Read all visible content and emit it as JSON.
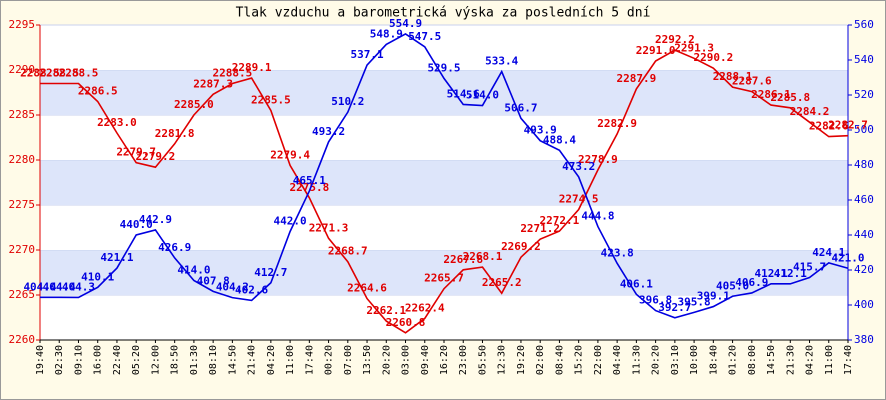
{
  "chart_data": {
    "type": "line",
    "title": "Tlak vzduchu a barometrická výska za posledních 5 dní",
    "categories": [
      "19:40",
      "02:30",
      "09:10",
      "16:00",
      "22:40",
      "05:20",
      "12:00",
      "18:50",
      "01:30",
      "08:10",
      "14:50",
      "21:40",
      "04:20",
      "11:00",
      "17:40",
      "00:20",
      "07:00",
      "13:50",
      "20:20",
      "03:00",
      "09:40",
      "16:20",
      "23:00",
      "05:50",
      "12:30",
      "19:20",
      "02:00",
      "08:40",
      "15:20",
      "22:00",
      "04:40",
      "11:30",
      "20:20",
      "03:10",
      "10:00",
      "18:40",
      "01:20",
      "08:00",
      "14:50",
      "21:30",
      "04:20",
      "11:00",
      "17:40"
    ],
    "series": [
      {
        "color": "#e00000",
        "axis": "y",
        "values": [
          2288.5,
          2288.5,
          2288.5,
          2286.5,
          2283.0,
          2279.7,
          2279.2,
          2281.8,
          2285.0,
          2287.3,
          2288.5,
          2289.1,
          2285.5,
          2279.4,
          2275.8,
          2271.3,
          2268.7,
          2264.6,
          2262.1,
          2260.8,
          2262.4,
          2265.7,
          2267.8,
          2268.1,
          2265.2,
          2269.2,
          2271.2,
          2272.1,
          2274.5,
          2278.9,
          2282.9,
          2287.9,
          2291.0,
          2292.2,
          2291.3,
          2290.2,
          2288.1,
          2287.6,
          2286.1,
          2285.8,
          2284.2,
          2282.6,
          2282.7
        ],
        "value_labels": [
          "2288.5",
          "2288.5",
          "2288.5",
          "2286.5",
          "2283.0",
          "2279.7",
          "2279.2",
          "2281.8",
          "2285.0",
          "2287.3",
          "2288.5",
          "2289.1",
          "2285.5",
          "2279.4",
          "2275.8",
          "2271.3",
          "2268.7",
          "2264.6",
          "2262.1",
          "2260.8",
          "2262.4",
          "2265.7",
          "2267.8",
          "2268.1",
          "2265.2",
          "2269.2",
          "2271.2",
          "2272.1",
          "2274.5",
          "2278.9",
          "2282.9",
          "2287.9",
          "2291.0",
          "2292.2",
          "2291.3",
          "2290.2",
          "2288.1",
          "2287.6",
          "2286.1",
          "2285.8",
          "2284.2",
          "2282.6",
          "2282.7"
        ]
      },
      {
        "color": "#0000e0",
        "axis": "y2",
        "values": [
          404.4,
          404.4,
          404.3,
          410.1,
          421.1,
          440.0,
          442.9,
          426.9,
          414.0,
          407.8,
          404.2,
          402.6,
          412.7,
          442.0,
          465.1,
          493.2,
          510.2,
          537.1,
          548.9,
          554.9,
          547.5,
          529.5,
          514.6,
          514.0,
          533.4,
          506.7,
          493.9,
          488.4,
          473.2,
          444.8,
          423.8,
          406.1,
          396.8,
          392.7,
          395.8,
          399.1,
          405.0,
          406.9,
          412.1,
          412.1,
          415.7,
          424.1,
          421.0
        ],
        "value_labels": [
          "404.4",
          "404.4",
          "404.3",
          "410.1",
          "421.1",
          "440.0",
          "442.9",
          "426.9",
          "414.0",
          "407.8",
          "404.2",
          "402.6",
          "412.7",
          "442.0",
          "465.1",
          "493.2",
          "510.2",
          "537.1",
          "548.9",
          "554.9",
          "547.5",
          "529.5",
          "514.6",
          "514.0",
          "533.4",
          "506.7",
          "493.9",
          "488.4",
          "473.2",
          "444.8",
          "423.8",
          "406.1",
          "396.8",
          "392.7",
          "395.8",
          "399.1",
          "405.0",
          "406.9",
          "412.1",
          "412.1",
          "415.7",
          "424.1",
          "421.0"
        ]
      }
    ],
    "ylim": [
      2260,
      2295
    ],
    "yticks": [
      2260,
      2265,
      2270,
      2275,
      2280,
      2285,
      2290,
      2295
    ],
    "y2lim": [
      380,
      560
    ],
    "y2ticks": [
      380,
      400,
      420,
      440,
      460,
      480,
      500,
      520,
      540,
      560
    ],
    "grid": true
  }
}
